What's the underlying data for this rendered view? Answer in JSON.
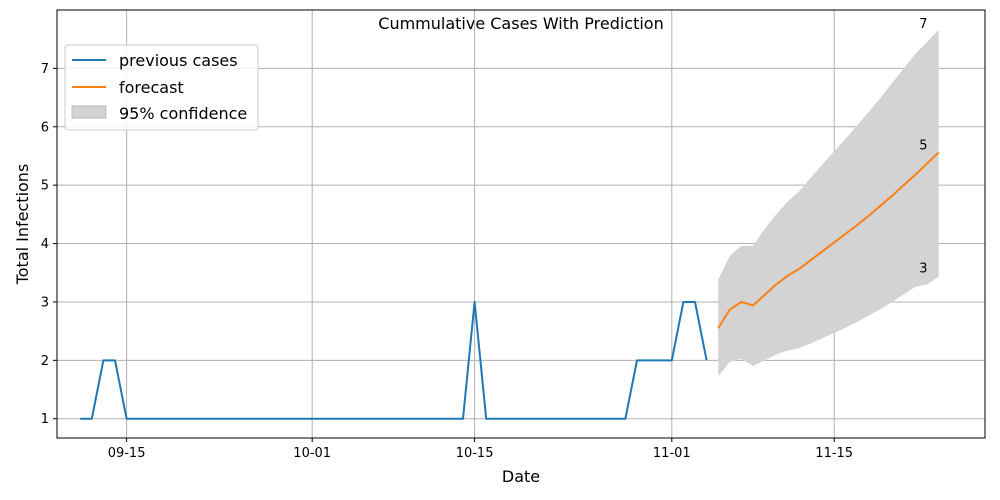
{
  "chart_data": {
    "type": "line",
    "title": "Cummulative Cases With Prediction",
    "xlabel": "Date",
    "ylabel": "Total Infections",
    "xlim": [
      "2020-09-09",
      "2020-11-28"
    ],
    "ylim": [
      0.67,
      8.0
    ],
    "grid": true,
    "legend_position": "top-left",
    "x_ticks": [
      {
        "date": "2020-09-15",
        "label": "09-15"
      },
      {
        "date": "2020-10-01",
        "label": "10-01"
      },
      {
        "date": "2020-10-15",
        "label": "10-15"
      },
      {
        "date": "2020-11-01",
        "label": "11-01"
      },
      {
        "date": "2020-11-15",
        "label": "11-15"
      }
    ],
    "y_ticks": [
      1,
      2,
      3,
      4,
      5,
      6,
      7
    ],
    "series": [
      {
        "name": "previous cases",
        "color": "#1f77b4",
        "points": [
          [
            "2020-09-11",
            1
          ],
          [
            "2020-09-12",
            1
          ],
          [
            "2020-09-13",
            2
          ],
          [
            "2020-09-14",
            2
          ],
          [
            "2020-09-15",
            1
          ],
          [
            "2020-10-14",
            1
          ],
          [
            "2020-10-15",
            3
          ],
          [
            "2020-10-16",
            1
          ],
          [
            "2020-10-28",
            1
          ],
          [
            "2020-10-29",
            2
          ],
          [
            "2020-11-01",
            2
          ],
          [
            "2020-11-02",
            3
          ],
          [
            "2020-11-03",
            3
          ],
          [
            "2020-11-04",
            2
          ]
        ]
      },
      {
        "name": "forecast",
        "color": "#ff7f0e",
        "points": [
          [
            "2020-11-05",
            2.55
          ],
          [
            "2020-11-06",
            2.87
          ],
          [
            "2020-11-07",
            3.0
          ],
          [
            "2020-11-08",
            2.94
          ],
          [
            "2020-11-09",
            3.12
          ],
          [
            "2020-11-10",
            3.3
          ],
          [
            "2020-11-11",
            3.45
          ],
          [
            "2020-11-12",
            3.57
          ],
          [
            "2020-11-13",
            3.72
          ],
          [
            "2020-11-14",
            3.87
          ],
          [
            "2020-11-15",
            4.02
          ],
          [
            "2020-11-16",
            4.17
          ],
          [
            "2020-11-17",
            4.32
          ],
          [
            "2020-11-18",
            4.48
          ],
          [
            "2020-11-19",
            4.65
          ],
          [
            "2020-11-20",
            4.82
          ],
          [
            "2020-11-21",
            5.0
          ],
          [
            "2020-11-22",
            5.18
          ],
          [
            "2020-11-23",
            5.37
          ],
          [
            "2020-11-24",
            5.56
          ]
        ]
      }
    ],
    "confidence_band": {
      "name": "95% confidence",
      "color": "#d3d3d3",
      "dates": [
        "2020-11-05",
        "2020-11-06",
        "2020-11-07",
        "2020-11-08",
        "2020-11-09",
        "2020-11-10",
        "2020-11-11",
        "2020-11-12",
        "2020-11-13",
        "2020-11-14",
        "2020-11-15",
        "2020-11-16",
        "2020-11-17",
        "2020-11-18",
        "2020-11-19",
        "2020-11-20",
        "2020-11-21",
        "2020-11-22",
        "2020-11-23",
        "2020-11-24"
      ],
      "lower": [
        1.73,
        1.97,
        2.03,
        1.9,
        2.0,
        2.1,
        2.17,
        2.21,
        2.29,
        2.38,
        2.47,
        2.56,
        2.66,
        2.77,
        2.88,
        3.0,
        3.13,
        3.26,
        3.3,
        3.43
      ],
      "upper": [
        3.38,
        3.79,
        3.96,
        3.96,
        4.25,
        4.5,
        4.72,
        4.9,
        5.13,
        5.36,
        5.58,
        5.8,
        6.03,
        6.26,
        6.5,
        6.75,
        7.0,
        7.25,
        7.45,
        7.66
      ]
    },
    "annotations": [
      {
        "text": "7",
        "date": "2020-11-22",
        "y": 7.66
      },
      {
        "text": "5",
        "date": "2020-11-22",
        "y": 5.58
      },
      {
        "text": "3",
        "date": "2020-11-22",
        "y": 3.47
      }
    ]
  }
}
